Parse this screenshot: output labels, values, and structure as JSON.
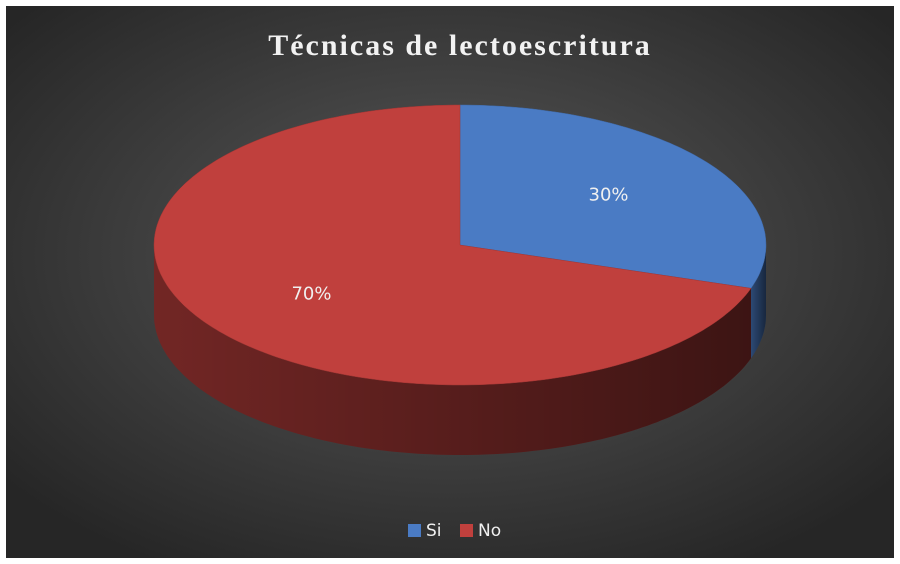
{
  "chart_data": {
    "type": "pie",
    "title": "Técnicas de lectoescritura",
    "categories": [
      "Si",
      "No"
    ],
    "values": [
      30,
      70
    ],
    "value_labels": [
      "30%",
      "70%"
    ],
    "colors": [
      "#4a7bc4",
      "#c0403d"
    ],
    "legend": "bottom"
  }
}
